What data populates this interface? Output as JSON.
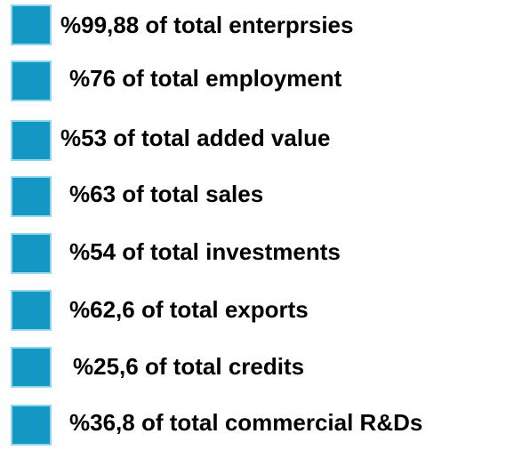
{
  "items": [
    "%99,88 of total enterprsies",
    "%76 of total employment",
    "%53 of total added value",
    "%63 of total sales",
    "%54 of total investments",
    "%62,6 of total exports",
    "%25,6 of total credits",
    "%36,8 of total commercial R&Ds"
  ]
}
